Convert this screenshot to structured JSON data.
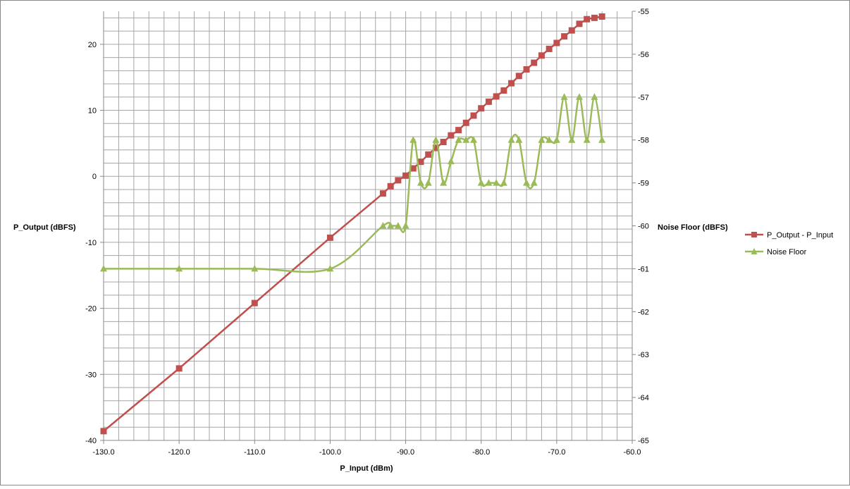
{
  "chart_data": {
    "type": "line",
    "title": "",
    "xlabel": "P_Input (dBm)",
    "ylabel": "P_Output (dBFS)",
    "y2label": "Noise Floor (dBFS)",
    "xlim": [
      -130,
      -60
    ],
    "ylim": [
      -40,
      25
    ],
    "y2lim": [
      -65,
      -55
    ],
    "x_ticks": [
      -130,
      -120,
      -110,
      -100,
      -90,
      -80,
      -70,
      -60
    ],
    "x_tick_labels": [
      "-130.0",
      "-120.0",
      "-110.0",
      "-100.0",
      "-90.0",
      "-80.0",
      "-70.0",
      "-60.0"
    ],
    "y_ticks": [
      -40,
      -30,
      -20,
      -10,
      0,
      10,
      20
    ],
    "y_tick_labels": [
      "-40",
      "-30",
      "-20",
      "-10",
      "0",
      "10",
      "20"
    ],
    "y2_ticks": [
      -65,
      -64,
      -63,
      -62,
      -61,
      -60,
      -59,
      -58,
      -57,
      -56,
      -55
    ],
    "y2_tick_labels": [
      "-65",
      "-64",
      "-63",
      "-62",
      "-61",
      "-60",
      "-59",
      "-58",
      "-57",
      "-56",
      "-55"
    ],
    "grid": true,
    "minor_grid_x_step": 2,
    "minor_grid_y_step": 2,
    "legend_position": "right",
    "series": [
      {
        "name": "P_Output - P_Input",
        "axis": "left",
        "color": "#C0504D",
        "marker": "square",
        "smooth": false,
        "x": [
          -130,
          -120,
          -110,
          -100,
          -93,
          -92,
          -91,
          -90,
          -89,
          -88,
          -87,
          -86,
          -85,
          -84,
          -83,
          -82,
          -81,
          -80,
          -79,
          -78,
          -77,
          -76,
          -75,
          -74,
          -73,
          -72,
          -71,
          -70,
          -69,
          -68,
          -67,
          -66,
          -65,
          -64
        ],
        "y": [
          -38.6,
          -29.1,
          -19.2,
          -9.3,
          -2.6,
          -1.5,
          -0.6,
          0.1,
          1.2,
          2.2,
          3.3,
          4.3,
          5.2,
          6.2,
          7.0,
          8.1,
          9.2,
          10.3,
          11.3,
          12.1,
          13.0,
          14.1,
          15.2,
          16.2,
          17.2,
          18.3,
          19.3,
          20.2,
          21.2,
          22.1,
          23.1,
          23.8,
          24.0,
          24.2
        ]
      },
      {
        "name": "Noise Floor",
        "axis": "right",
        "color": "#9BBB59",
        "marker": "triangle",
        "smooth": true,
        "x": [
          -130,
          -120,
          -110,
          -100,
          -93,
          -92,
          -91,
          -90,
          -89,
          -88,
          -87,
          -86,
          -85,
          -84,
          -83,
          -82,
          -81,
          -80,
          -79,
          -78,
          -77,
          -76,
          -75,
          -74,
          -73,
          -72,
          -71,
          -70,
          -69,
          -68,
          -67,
          -66,
          -65,
          -64
        ],
        "y": [
          -61,
          -61,
          -61,
          -61,
          -60,
          -60,
          -60,
          -60,
          -58,
          -59,
          -59,
          -58,
          -59,
          -58.5,
          -58,
          -58,
          -58,
          -59,
          -59,
          -59,
          -59,
          -58,
          -58,
          -59,
          -59,
          -58,
          -58,
          -58,
          -57,
          -58,
          -57,
          -58,
          -57,
          -58
        ]
      }
    ]
  }
}
